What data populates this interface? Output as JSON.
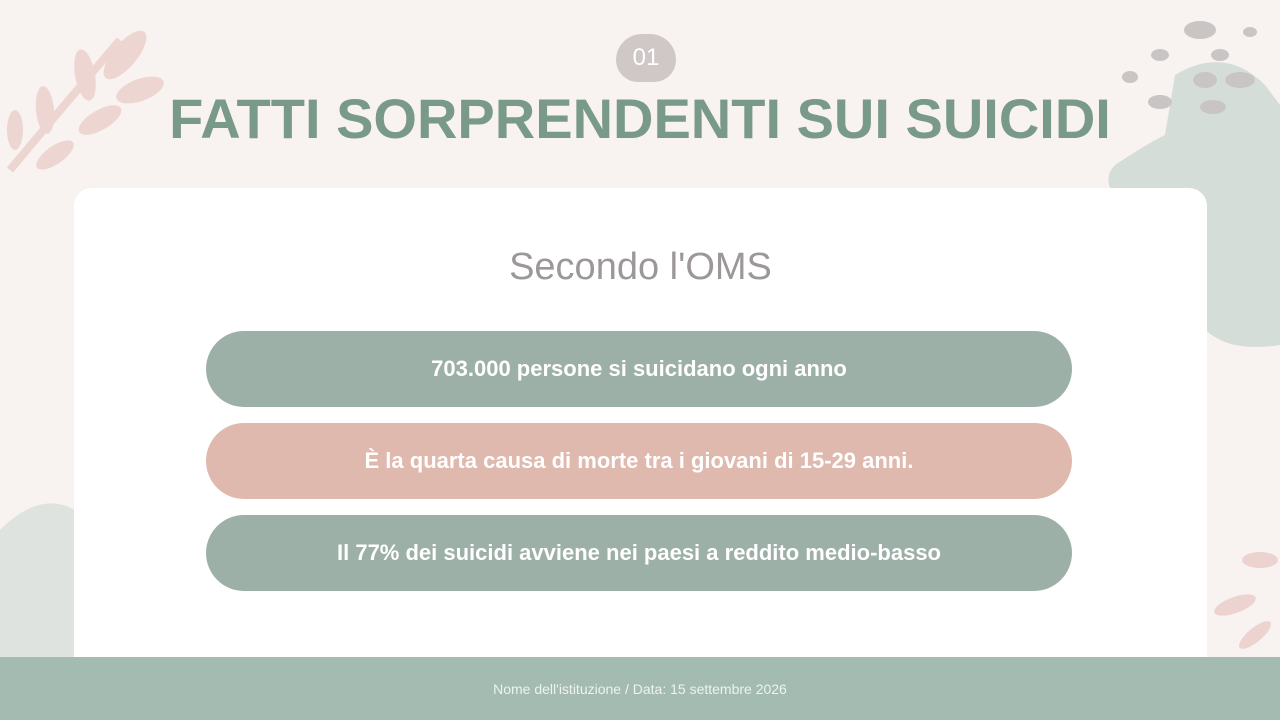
{
  "badge": "01",
  "title": "FATTI SORPRENDENTI SUI SUICIDI",
  "subtitle": "Secondo l'OMS",
  "facts": [
    {
      "text": "703.000 persone si suicidano ogni anno",
      "color": "#9db0a8"
    },
    {
      "text": "È la quarta causa di morte tra i giovani di 15-29 anni.",
      "color": "#dfb8ae"
    },
    {
      "text": "Il 77% dei suicidi avviene nei paesi a reddito medio-basso",
      "color": "#9db0a8"
    }
  ],
  "footer": "Nome dell'istituzione / Data: 15 settembre 2026"
}
